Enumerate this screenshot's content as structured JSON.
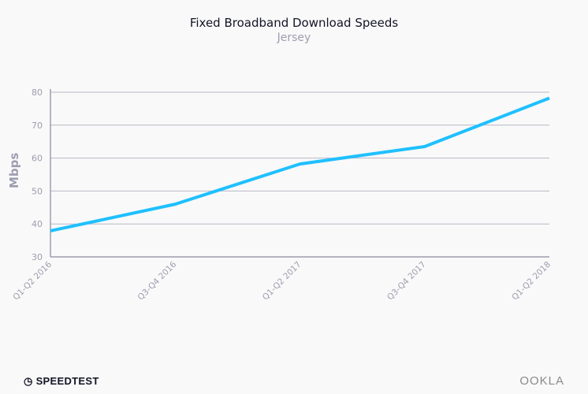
{
  "chart_data": {
    "type": "line",
    "title": "Fixed Broadband Download Speeds",
    "subtitle": "Jersey",
    "xlabel": "",
    "ylabel": "Mbps",
    "categories": [
      "Q1-Q2 2016",
      "Q3-Q4 2016",
      "Q1-Q2 2017",
      "Q3-Q4 2017",
      "Q1-Q2 2018"
    ],
    "series": [
      {
        "values": [
          37.9,
          46.0,
          58.2,
          63.5,
          78.2
        ],
        "color": "#1fc0ff"
      }
    ],
    "ylim": [
      30,
      80
    ],
    "yticks": [
      30,
      40,
      50,
      60,
      70,
      80
    ],
    "grid": true
  },
  "footer": {
    "left_logo": "SPEEDTEST",
    "right_logo": "OOKLA"
  }
}
